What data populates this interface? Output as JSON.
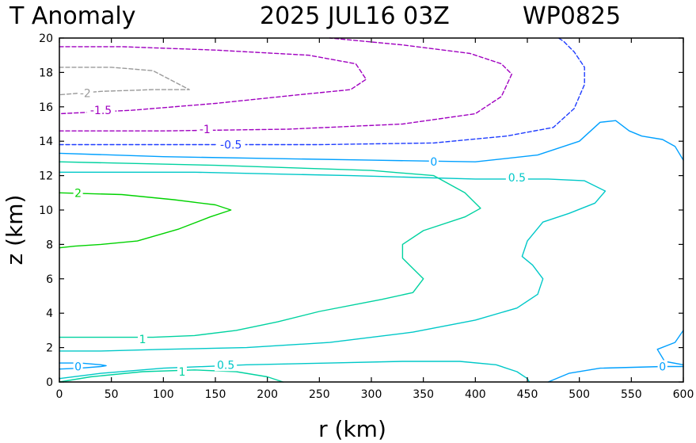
{
  "header": {
    "variable": "T Anomaly",
    "datetime": "2025 JUL16 03Z",
    "storm_id": "WP0825"
  },
  "colors": {
    "level_-2": "#9a9a9a",
    "level_-1.5": "#a000c0",
    "level_-1": "#a000c0",
    "level_-0.5": "#1e3cff",
    "level_0": "#00a0ff",
    "level_0.5": "#00c8c8",
    "level_1": "#00d2a0",
    "level_2": "#00d200"
  },
  "chart_data": {
    "type": "contour",
    "title": "T Anomaly   2025 JUL16 03Z   WP0825",
    "xlabel": "r (km)",
    "ylabel": "z (km)",
    "xlim": [
      0,
      600
    ],
    "ylim": [
      0,
      20
    ],
    "xticks": [
      0,
      50,
      100,
      150,
      200,
      250,
      300,
      350,
      400,
      450,
      500,
      550,
      600
    ],
    "yticks": [
      0,
      2,
      4,
      6,
      8,
      10,
      12,
      14,
      16,
      18,
      20
    ],
    "contours": [
      {
        "level": -2,
        "label": "-2",
        "style": "dashed",
        "color": "#9a9a9a",
        "label_at": [
          25,
          16.8
        ],
        "points": [
          [
            0,
            18.3
          ],
          [
            50,
            18.3
          ],
          [
            90,
            18.1
          ],
          [
            125,
            17.0
          ],
          [
            90,
            17.0
          ],
          [
            40,
            16.9
          ],
          [
            0,
            16.7
          ]
        ]
      },
      {
        "level": -1.5,
        "label": "-1.5",
        "style": "dashed",
        "color": "#a000c0",
        "label_at": [
          40,
          15.8
        ],
        "points": [
          [
            0,
            19.5
          ],
          [
            60,
            19.5
          ],
          [
            150,
            19.3
          ],
          [
            240,
            19.0
          ],
          [
            285,
            18.5
          ],
          [
            295,
            17.6
          ],
          [
            280,
            17.0
          ],
          [
            230,
            16.7
          ],
          [
            150,
            16.2
          ],
          [
            70,
            15.8
          ],
          [
            0,
            15.6
          ]
        ]
      },
      {
        "level": -1,
        "label": "-1",
        "style": "dashed",
        "color": "#a000c0",
        "label_at": [
          140,
          14.7
        ],
        "points": [
          [
            0,
            14.6
          ],
          [
            100,
            14.6
          ],
          [
            220,
            14.7
          ],
          [
            330,
            15.0
          ],
          [
            400,
            15.6
          ],
          [
            425,
            16.6
          ],
          [
            435,
            17.9
          ],
          [
            425,
            18.5
          ],
          [
            395,
            19.1
          ],
          [
            330,
            19.6
          ],
          [
            260,
            20.0
          ]
        ]
      },
      {
        "level": -0.5,
        "label": "-0.5",
        "style": "dashed",
        "color": "#1e3cff",
        "label_at": [
          165,
          13.8
        ],
        "points": [
          [
            0,
            13.8
          ],
          [
            130,
            13.8
          ],
          [
            250,
            13.8
          ],
          [
            360,
            13.9
          ],
          [
            430,
            14.3
          ],
          [
            475,
            14.8
          ],
          [
            495,
            15.9
          ],
          [
            505,
            17.3
          ],
          [
            505,
            18.3
          ],
          [
            495,
            19.2
          ],
          [
            485,
            19.8
          ],
          [
            480,
            20.0
          ]
        ]
      },
      {
        "level": 0,
        "label": "0",
        "style": "solid",
        "color": "#00a0ff",
        "label_at": [
          360,
          12.8
        ],
        "points": [
          [
            0,
            13.3
          ],
          [
            100,
            13.1
          ],
          [
            200,
            13.0
          ],
          [
            300,
            12.9
          ],
          [
            400,
            12.8
          ],
          [
            460,
            13.2
          ],
          [
            500,
            14.0
          ],
          [
            520,
            15.1
          ],
          [
            535,
            15.2
          ],
          [
            548,
            14.6
          ],
          [
            560,
            14.3
          ],
          [
            580,
            14.1
          ],
          [
            592,
            13.7
          ],
          [
            600,
            12.9
          ]
        ]
      },
      {
        "level": 0,
        "label": "0",
        "style": "solid",
        "color": "#00a0ff",
        "label_at": [
          580,
          0.9
        ],
        "points": [
          [
            600,
            3.0
          ],
          [
            592,
            2.3
          ],
          [
            575,
            1.9
          ],
          [
            582,
            1.2
          ],
          [
            600,
            1.0
          ]
        ]
      },
      {
        "level": 0,
        "label": "0",
        "style": "solid",
        "color": "#00a0ff",
        "label_at": [
          580,
          0.9
        ],
        "points": [
          [
            470,
            0.0
          ],
          [
            490,
            0.5
          ],
          [
            520,
            0.8
          ],
          [
            580,
            0.9
          ],
          [
            600,
            0.9
          ]
        ]
      },
      {
        "level": 0,
        "label": "0",
        "style": "solid",
        "color": "#00a0ff",
        "label_at": [
          18,
          0.9
        ],
        "points": [
          [
            0,
            1.1
          ],
          [
            20,
            1.1
          ],
          [
            40,
            1.0
          ],
          [
            45,
            0.95
          ],
          [
            40,
            0.9
          ],
          [
            20,
            0.8
          ],
          [
            0,
            0.75
          ]
        ]
      },
      {
        "level": 0.5,
        "label": "0.5",
        "style": "solid",
        "color": "#00c8c8",
        "label_at": [
          440,
          11.9
        ],
        "points": [
          [
            0,
            12.2
          ],
          [
            130,
            12.2
          ],
          [
            280,
            12.0
          ],
          [
            400,
            11.8
          ],
          [
            470,
            11.8
          ],
          [
            505,
            11.7
          ],
          [
            525,
            11.1
          ],
          [
            515,
            10.4
          ],
          [
            490,
            9.8
          ],
          [
            465,
            9.3
          ],
          [
            450,
            8.2
          ],
          [
            445,
            7.3
          ],
          [
            455,
            6.8
          ],
          [
            465,
            6.0
          ],
          [
            460,
            5.1
          ],
          [
            440,
            4.3
          ],
          [
            400,
            3.6
          ],
          [
            340,
            2.9
          ],
          [
            260,
            2.3
          ],
          [
            180,
            2.0
          ],
          [
            100,
            1.9
          ],
          [
            40,
            1.8
          ],
          [
            0,
            1.8
          ]
        ]
      },
      {
        "level": 0.5,
        "label": "0.5",
        "style": "solid",
        "color": "#00c8c8",
        "label_at": [
          160,
          1.0
        ],
        "points": [
          [
            0,
            0.2
          ],
          [
            40,
            0.5
          ],
          [
            100,
            0.8
          ],
          [
            180,
            1.0
          ],
          [
            260,
            1.1
          ],
          [
            330,
            1.2
          ],
          [
            385,
            1.2
          ],
          [
            420,
            1.0
          ],
          [
            440,
            0.6
          ],
          [
            450,
            0.2
          ],
          [
            452,
            0.0
          ]
        ]
      },
      {
        "level": 1,
        "label": "1",
        "style": "solid",
        "color": "#00d2a0",
        "label_at": [
          80,
          2.5
        ],
        "points": [
          [
            0,
            12.8
          ],
          [
            150,
            12.6
          ],
          [
            300,
            12.3
          ],
          [
            360,
            12.0
          ],
          [
            390,
            11.0
          ],
          [
            405,
            10.1
          ],
          [
            390,
            9.6
          ],
          [
            350,
            8.8
          ],
          [
            330,
            8.0
          ],
          [
            330,
            7.2
          ],
          [
            340,
            6.6
          ],
          [
            350,
            6.0
          ],
          [
            340,
            5.2
          ],
          [
            310,
            4.8
          ],
          [
            250,
            4.1
          ],
          [
            210,
            3.5
          ],
          [
            170,
            3.0
          ],
          [
            130,
            2.7
          ],
          [
            90,
            2.6
          ],
          [
            40,
            2.6
          ],
          [
            0,
            2.6
          ]
        ]
      },
      {
        "level": 1,
        "label": "1",
        "style": "solid",
        "color": "#00d2a0",
        "label_at": [
          118,
          0.6
        ],
        "points": [
          [
            0,
            0.0
          ],
          [
            30,
            0.3
          ],
          [
            80,
            0.6
          ],
          [
            130,
            0.7
          ],
          [
            170,
            0.6
          ],
          [
            200,
            0.3
          ],
          [
            215,
            0.0
          ]
        ]
      },
      {
        "level": 2,
        "label": "2",
        "style": "solid",
        "color": "#00d200",
        "label_at": [
          18,
          11.0
        ],
        "points": [
          [
            0,
            11.0
          ],
          [
            60,
            10.9
          ],
          [
            110,
            10.6
          ],
          [
            150,
            10.3
          ],
          [
            165,
            10.0
          ],
          [
            145,
            9.6
          ],
          [
            115,
            8.9
          ],
          [
            75,
            8.2
          ],
          [
            40,
            8.0
          ],
          [
            15,
            7.9
          ],
          [
            0,
            7.8
          ]
        ]
      }
    ]
  }
}
